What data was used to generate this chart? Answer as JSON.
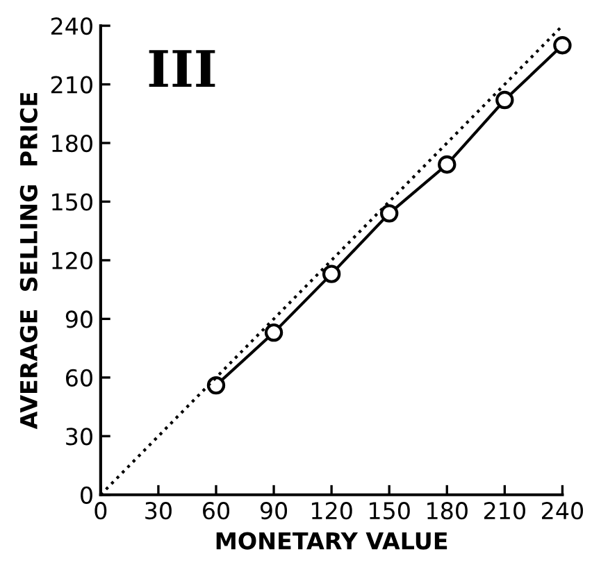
{
  "chart_data": {
    "type": "line",
    "xlabel": "MONETARY VALUE",
    "ylabel": "AVERAGE  SELLING  PRICE",
    "annotations": [
      "III"
    ],
    "x": [
      60,
      90,
      120,
      150,
      180,
      210,
      240
    ],
    "series": [
      {
        "color": "#000000",
        "values": [
          56,
          83,
          113,
          144,
          169,
          202,
          230
        ],
        "marker": "circle",
        "line_style": "solid"
      },
      {
        "type": "line",
        "x": [
          0,
          240
        ],
        "values": [
          0,
          240
        ],
        "color": "#000000",
        "marker": "none",
        "line_style": "dotted"
      }
    ],
    "xlim": [
      0,
      240
    ],
    "ylim": [
      0,
      240
    ],
    "xticks": [
      0,
      30,
      60,
      90,
      120,
      150,
      180,
      210,
      240
    ],
    "yticks": [
      0,
      30,
      60,
      90,
      120,
      150,
      180,
      210,
      240
    ],
    "grid": false,
    "legend": false
  }
}
